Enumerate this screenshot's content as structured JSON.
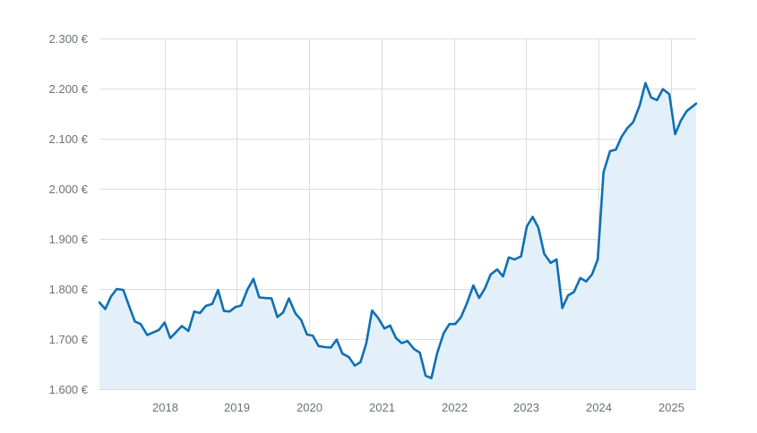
{
  "chart_data": {
    "type": "area",
    "title": "",
    "xlabel": "",
    "ylabel": "",
    "ylim": [
      1600,
      2300
    ],
    "xlim": [
      2017.1,
      2025.35
    ],
    "grid": true,
    "y_ticks": [
      {
        "value": 1600,
        "label": "1.600 €"
      },
      {
        "value": 1700,
        "label": "1.700 €"
      },
      {
        "value": 1800,
        "label": "1.800 €"
      },
      {
        "value": 1900,
        "label": "1.900 €"
      },
      {
        "value": 2000,
        "label": "2.000 €"
      },
      {
        "value": 2100,
        "label": "2.100 €"
      },
      {
        "value": 2200,
        "label": "2.200 €"
      },
      {
        "value": 2300,
        "label": "2.300 €"
      }
    ],
    "x_ticks": [
      {
        "value": 2018,
        "label": "2018"
      },
      {
        "value": 2019,
        "label": "2019"
      },
      {
        "value": 2020,
        "label": "2020"
      },
      {
        "value": 2021,
        "label": "2021"
      },
      {
        "value": 2022,
        "label": "2022"
      },
      {
        "value": 2023,
        "label": "2023"
      },
      {
        "value": 2024,
        "label": "2024"
      },
      {
        "value": 2025,
        "label": "2025"
      }
    ],
    "colors": {
      "line": "#0f6fb5",
      "fill": "#e3f0f9",
      "grid": "#dcdcdc",
      "tick_text": "#6b7077"
    },
    "series": [
      {
        "x": [
          2017.1,
          2017.18,
          2017.26,
          2017.34,
          2017.43,
          2017.51,
          2017.59,
          2017.67,
          2017.76,
          2017.84,
          2017.92,
          2018.0,
          2018.08,
          2018.16,
          2018.24,
          2018.33,
          2018.41,
          2018.49,
          2018.57,
          2018.66,
          2018.74,
          2018.82,
          2018.9,
          2018.98,
          2019.06,
          2019.15,
          2019.23,
          2019.31,
          2019.39,
          2019.48,
          2019.56,
          2019.64,
          2019.72,
          2019.81,
          2019.89,
          2019.97,
          2020.05,
          2020.13,
          2020.22,
          2020.3,
          2020.38,
          2020.46,
          2020.55,
          2020.63,
          2020.71,
          2020.79,
          2020.87,
          2020.95,
          2021.04,
          2021.12,
          2021.2,
          2021.28,
          2021.36,
          2021.45,
          2021.53,
          2021.61,
          2021.69,
          2021.77,
          2021.86,
          2021.94,
          2022.02,
          2022.1,
          2022.18,
          2022.27,
          2022.35,
          2022.43,
          2022.51,
          2022.6,
          2022.68,
          2022.76,
          2022.84,
          2022.93,
          2023.01,
          2023.09,
          2023.17,
          2023.25,
          2023.34,
          2023.42,
          2023.5,
          2023.58,
          2023.66,
          2023.75,
          2023.83,
          2023.91,
          2023.99,
          2024.07,
          2024.16,
          2024.24,
          2024.32,
          2024.4,
          2024.48,
          2024.57,
          2024.65,
          2024.73,
          2024.81,
          2024.89,
          2024.98,
          2025.06,
          2025.14,
          2025.22,
          2025.35
        ],
        "values": [
          1773,
          1760,
          1785,
          1800,
          1798,
          1766,
          1735,
          1730,
          1708,
          1713,
          1718,
          1733,
          1702,
          1714,
          1726,
          1716,
          1755,
          1752,
          1766,
          1770,
          1798,
          1756,
          1755,
          1764,
          1767,
          1800,
          1820,
          1783,
          1782,
          1781,
          1744,
          1753,
          1781,
          1751,
          1738,
          1709,
          1707,
          1686,
          1684,
          1683,
          1699,
          1671,
          1664,
          1647,
          1654,
          1692,
          1757,
          1743,
          1721,
          1727,
          1702,
          1692,
          1696,
          1680,
          1673,
          1627,
          1622,
          1672,
          1712,
          1730,
          1730,
          1744,
          1771,
          1807,
          1782,
          1801,
          1829,
          1839,
          1825,
          1863,
          1859,
          1865,
          1925,
          1944,
          1922,
          1870,
          1852,
          1859,
          1762,
          1787,
          1794,
          1822,
          1815,
          1829,
          1859,
          2033,
          2075,
          2078,
          2104,
          2121,
          2133,
          2166,
          2211,
          2182,
          2177,
          2199,
          2189,
          2109,
          2136,
          2155,
          2170
        ]
      }
    ]
  }
}
